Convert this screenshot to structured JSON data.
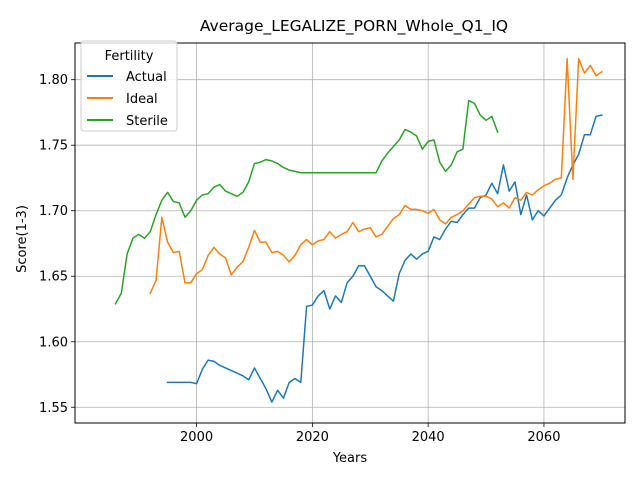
{
  "chart_data": {
    "type": "line",
    "title": "Average_LEGALIZE_PORN_Whole_Q1_IQ",
    "xlabel": "Years",
    "ylabel": "Score(1-3)",
    "xlim": [
      1979,
      2074
    ],
    "ylim": [
      1.538,
      1.828
    ],
    "xticks": [
      2000,
      2020,
      2040,
      2060
    ],
    "yticks": [
      1.55,
      1.6,
      1.65,
      1.7,
      1.75,
      1.8
    ],
    "ytick_labels": [
      "1.55",
      "1.60",
      "1.65",
      "1.70",
      "1.75",
      "1.80"
    ],
    "grid": true,
    "legend": {
      "title": "Fertility",
      "position": "top-left"
    },
    "series": [
      {
        "name": "Actual",
        "color": "#1f77b4",
        "points": [
          [
            1995,
            1.569
          ],
          [
            1996,
            1.569
          ],
          [
            1997,
            1.569
          ],
          [
            1998,
            1.569
          ],
          [
            1999,
            1.569
          ],
          [
            2000,
            1.568
          ],
          [
            2001,
            1.579
          ],
          [
            2002,
            1.586
          ],
          [
            2003,
            1.585
          ],
          [
            2004,
            1.582
          ],
          [
            2005,
            1.58
          ],
          [
            2006,
            1.578
          ],
          [
            2007,
            1.576
          ],
          [
            2008,
            1.574
          ],
          [
            2009,
            1.571
          ],
          [
            2010,
            1.58
          ],
          [
            2011,
            1.572
          ],
          [
            2012,
            1.564
          ],
          [
            2013,
            1.554
          ],
          [
            2014,
            1.563
          ],
          [
            2015,
            1.557
          ],
          [
            2016,
            1.569
          ],
          [
            2017,
            1.572
          ],
          [
            2018,
            1.569
          ],
          [
            2019,
            1.627
          ],
          [
            2020,
            1.628
          ],
          [
            2021,
            1.635
          ],
          [
            2022,
            1.639
          ],
          [
            2023,
            1.625
          ],
          [
            2024,
            1.635
          ],
          [
            2025,
            1.63
          ],
          [
            2026,
            1.645
          ],
          [
            2027,
            1.65
          ],
          [
            2028,
            1.658
          ],
          [
            2029,
            1.658
          ],
          [
            2030,
            1.65
          ],
          [
            2031,
            1.642
          ],
          [
            2032,
            1.639
          ],
          [
            2033,
            1.635
          ],
          [
            2034,
            1.631
          ],
          [
            2035,
            1.652
          ],
          [
            2036,
            1.662
          ],
          [
            2037,
            1.667
          ],
          [
            2038,
            1.663
          ],
          [
            2039,
            1.667
          ],
          [
            2040,
            1.669
          ],
          [
            2041,
            1.68
          ],
          [
            2042,
            1.678
          ],
          [
            2043,
            1.686
          ],
          [
            2044,
            1.692
          ],
          [
            2045,
            1.691
          ],
          [
            2046,
            1.697
          ],
          [
            2047,
            1.702
          ],
          [
            2048,
            1.702
          ],
          [
            2049,
            1.71
          ],
          [
            2050,
            1.712
          ],
          [
            2051,
            1.721
          ],
          [
            2052,
            1.713
          ],
          [
            2053,
            1.735
          ],
          [
            2054,
            1.715
          ],
          [
            2055,
            1.722
          ],
          [
            2056,
            1.697
          ],
          [
            2057,
            1.712
          ],
          [
            2058,
            1.693
          ],
          [
            2059,
            1.7
          ],
          [
            2060,
            1.696
          ],
          [
            2061,
            1.702
          ],
          [
            2062,
            1.708
          ],
          [
            2063,
            1.712
          ],
          [
            2064,
            1.725
          ],
          [
            2065,
            1.735
          ],
          [
            2066,
            1.743
          ],
          [
            2067,
            1.758
          ],
          [
            2068,
            1.758
          ],
          [
            2069,
            1.772
          ],
          [
            2070,
            1.773
          ]
        ]
      },
      {
        "name": "Ideal",
        "color": "#ff7f0e",
        "points": [
          [
            1992,
            1.637
          ],
          [
            1993,
            1.647
          ],
          [
            1994,
            1.695
          ],
          [
            1995,
            1.676
          ],
          [
            1996,
            1.668
          ],
          [
            1997,
            1.669
          ],
          [
            1998,
            1.645
          ],
          [
            1999,
            1.645
          ],
          [
            2000,
            1.652
          ],
          [
            2001,
            1.655
          ],
          [
            2002,
            1.666
          ],
          [
            2003,
            1.672
          ],
          [
            2004,
            1.667
          ],
          [
            2005,
            1.664
          ],
          [
            2006,
            1.651
          ],
          [
            2007,
            1.657
          ],
          [
            2008,
            1.661
          ],
          [
            2009,
            1.672
          ],
          [
            2010,
            1.685
          ],
          [
            2011,
            1.676
          ],
          [
            2012,
            1.676
          ],
          [
            2013,
            1.668
          ],
          [
            2014,
            1.669
          ],
          [
            2015,
            1.666
          ],
          [
            2016,
            1.661
          ],
          [
            2017,
            1.666
          ],
          [
            2018,
            1.674
          ],
          [
            2019,
            1.678
          ],
          [
            2020,
            1.674
          ],
          [
            2021,
            1.677
          ],
          [
            2022,
            1.678
          ],
          [
            2023,
            1.684
          ],
          [
            2024,
            1.679
          ],
          [
            2025,
            1.682
          ],
          [
            2026,
            1.684
          ],
          [
            2027,
            1.691
          ],
          [
            2028,
            1.684
          ],
          [
            2029,
            1.686
          ],
          [
            2030,
            1.687
          ],
          [
            2031,
            1.68
          ],
          [
            2032,
            1.682
          ],
          [
            2033,
            1.688
          ],
          [
            2034,
            1.694
          ],
          [
            2035,
            1.697
          ],
          [
            2036,
            1.704
          ],
          [
            2037,
            1.701
          ],
          [
            2038,
            1.701
          ],
          [
            2039,
            1.7
          ],
          [
            2040,
            1.698
          ],
          [
            2041,
            1.701
          ],
          [
            2042,
            1.693
          ],
          [
            2043,
            1.69
          ],
          [
            2044,
            1.695
          ],
          [
            2045,
            1.697
          ],
          [
            2046,
            1.7
          ],
          [
            2047,
            1.705
          ],
          [
            2048,
            1.71
          ],
          [
            2049,
            1.711
          ],
          [
            2050,
            1.711
          ],
          [
            2051,
            1.709
          ],
          [
            2052,
            1.703
          ],
          [
            2053,
            1.706
          ],
          [
            2054,
            1.702
          ],
          [
            2055,
            1.71
          ],
          [
            2056,
            1.708
          ],
          [
            2057,
            1.714
          ],
          [
            2058,
            1.712
          ],
          [
            2059,
            1.716
          ],
          [
            2060,
            1.719
          ],
          [
            2061,
            1.721
          ],
          [
            2062,
            1.724
          ],
          [
            2063,
            1.725
          ],
          [
            2064,
            1.816
          ],
          [
            2065,
            1.724
          ],
          [
            2066,
            1.816
          ],
          [
            2067,
            1.805
          ],
          [
            2068,
            1.811
          ],
          [
            2069,
            1.803
          ],
          [
            2070,
            1.806
          ]
        ]
      },
      {
        "name": "Sterile",
        "color": "#2ca02c",
        "points": [
          [
            1986,
            1.629
          ],
          [
            1987,
            1.637
          ],
          [
            1988,
            1.667
          ],
          [
            1989,
            1.679
          ],
          [
            1990,
            1.682
          ],
          [
            1991,
            1.679
          ],
          [
            1992,
            1.684
          ],
          [
            1993,
            1.697
          ],
          [
            1994,
            1.708
          ],
          [
            1995,
            1.714
          ],
          [
            1996,
            1.707
          ],
          [
            1997,
            1.706
          ],
          [
            1998,
            1.695
          ],
          [
            1999,
            1.7
          ],
          [
            2000,
            1.708
          ],
          [
            2001,
            1.712
          ],
          [
            2002,
            1.713
          ],
          [
            2003,
            1.718
          ],
          [
            2004,
            1.72
          ],
          [
            2005,
            1.715
          ],
          [
            2006,
            1.713
          ],
          [
            2007,
            1.711
          ],
          [
            2008,
            1.714
          ],
          [
            2009,
            1.722
          ],
          [
            2010,
            1.736
          ],
          [
            2011,
            1.737
          ],
          [
            2012,
            1.739
          ],
          [
            2013,
            1.738
          ],
          [
            2014,
            1.736
          ],
          [
            2015,
            1.733
          ],
          [
            2016,
            1.731
          ],
          [
            2017,
            1.73
          ],
          [
            2018,
            1.729
          ],
          [
            2019,
            1.729
          ],
          [
            2020,
            1.729
          ],
          [
            2021,
            1.729
          ],
          [
            2022,
            1.729
          ],
          [
            2023,
            1.729
          ],
          [
            2024,
            1.729
          ],
          [
            2025,
            1.729
          ],
          [
            2026,
            1.729
          ],
          [
            2027,
            1.729
          ],
          [
            2028,
            1.729
          ],
          [
            2029,
            1.729
          ],
          [
            2030,
            1.729
          ],
          [
            2031,
            1.729
          ],
          [
            2032,
            1.738
          ],
          [
            2033,
            1.744
          ],
          [
            2034,
            1.749
          ],
          [
            2035,
            1.754
          ],
          [
            2036,
            1.762
          ],
          [
            2037,
            1.76
          ],
          [
            2038,
            1.757
          ],
          [
            2039,
            1.747
          ],
          [
            2040,
            1.753
          ],
          [
            2041,
            1.754
          ],
          [
            2042,
            1.737
          ],
          [
            2043,
            1.73
          ],
          [
            2044,
            1.735
          ],
          [
            2045,
            1.745
          ],
          [
            2046,
            1.747
          ],
          [
            2047,
            1.784
          ],
          [
            2048,
            1.782
          ],
          [
            2049,
            1.773
          ],
          [
            2050,
            1.769
          ],
          [
            2051,
            1.772
          ],
          [
            2052,
            1.76
          ]
        ]
      }
    ]
  }
}
